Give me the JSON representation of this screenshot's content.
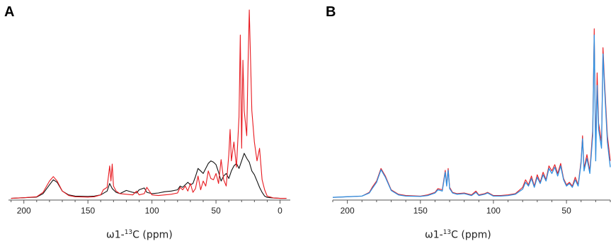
{
  "chart_data": [
    {
      "panel": "A",
      "type": "line",
      "xlabel_prefix": "ω1-",
      "xlabel_sup": "13",
      "xlabel_suffix": "C (ppm)",
      "xlim": [
        212,
        -8
      ],
      "xticks": [
        "200",
        "150",
        "100",
        "50",
        "0"
      ],
      "xtick_values": [
        200,
        150,
        100,
        50,
        0
      ],
      "series": [
        {
          "color": "#111111",
          "x": [
            210,
            200,
            190,
            185,
            180,
            177,
            174,
            170,
            165,
            160,
            150,
            145,
            140,
            135,
            133,
            131,
            128,
            125,
            120,
            115,
            112,
            110,
            106,
            104,
            100,
            95,
            90,
            85,
            80,
            78,
            76,
            74,
            72,
            70,
            68,
            66,
            64,
            62,
            60,
            58,
            56,
            54,
            52,
            50,
            48,
            46,
            44,
            42,
            40,
            38,
            36,
            34,
            32,
            30,
            28,
            26,
            24,
            22,
            20,
            18,
            16,
            14,
            12,
            10,
            5,
            0,
            -5
          ],
          "y": [
            0.5,
            1.5,
            2.5,
            8,
            22,
            30,
            26,
            12,
            6,
            4,
            3.5,
            4,
            6,
            12,
            24,
            16,
            10,
            8,
            13,
            10,
            9,
            14,
            17,
            10,
            8,
            9,
            11,
            12,
            14,
            20,
            18,
            22,
            26,
            22,
            24,
            35,
            48,
            44,
            40,
            48,
            56,
            60,
            58,
            54,
            42,
            28,
            36,
            40,
            32,
            44,
            52,
            56,
            48,
            60,
            72,
            64,
            58,
            44,
            38,
            28,
            18,
            10,
            4,
            2,
            1,
            0.5,
            0.5
          ]
        },
        {
          "color": "#e8191f",
          "x": [
            210,
            200,
            190,
            185,
            180,
            177,
            174,
            170,
            165,
            160,
            150,
            145,
            140,
            138,
            135,
            133,
            132,
            131,
            130,
            128,
            125,
            120,
            115,
            112,
            110,
            106,
            104,
            100,
            95,
            90,
            85,
            80,
            78,
            76,
            74,
            72,
            70,
            68,
            66,
            64,
            62,
            60,
            58,
            56,
            54,
            52,
            50,
            48,
            46,
            44,
            42,
            40,
            39,
            38,
            36,
            34,
            32,
            31,
            30,
            29,
            28,
            26,
            25,
            24,
            22,
            20,
            18,
            16,
            14,
            12,
            10,
            5,
            0,
            -5
          ],
          "y": [
            0.5,
            1.5,
            3,
            10,
            28,
            35,
            28,
            12,
            5,
            3,
            2.5,
            3,
            6,
            14,
            18,
            52,
            28,
            55,
            20,
            12,
            8,
            7,
            6,
            12,
            6,
            8,
            18,
            6,
            5,
            6,
            7,
            9,
            18,
            14,
            20,
            12,
            24,
            10,
            16,
            36,
            14,
            28,
            20,
            44,
            32,
            30,
            40,
            24,
            62,
            30,
            20,
            70,
            110,
            60,
            90,
            50,
            130,
            260,
            80,
            220,
            140,
            100,
            210,
            300,
            140,
            90,
            60,
            80,
            30,
            14,
            4,
            1,
            0.5,
            0.5
          ]
        }
      ]
    },
    {
      "panel": "B",
      "type": "line",
      "xlabel_prefix": "ω1-",
      "xlabel_sup": "13",
      "xlabel_suffix": "C (ppm)",
      "xlim": [
        210,
        20
      ],
      "xticks": [
        "200",
        "150",
        "100",
        "50"
      ],
      "xtick_values": [
        200,
        150,
        100,
        50
      ],
      "series": [
        {
          "color": "#e8191f",
          "x": [
            210,
            200,
            190,
            185,
            183,
            180,
            177,
            174,
            170,
            165,
            160,
            150,
            145,
            140,
            138,
            135,
            133,
            132,
            131,
            130,
            128,
            125,
            120,
            115,
            112,
            110,
            106,
            104,
            100,
            95,
            90,
            85,
            80,
            78,
            76,
            74,
            72,
            70,
            68,
            66,
            64,
            62,
            60,
            58,
            56,
            54,
            52,
            50,
            48,
            46,
            44,
            42,
            40,
            39,
            38,
            36,
            34,
            32,
            31,
            30,
            29,
            28,
            26,
            25,
            24,
            22,
            20
          ],
          "y": [
            2,
            3,
            4,
            10,
            18,
            28,
            48,
            36,
            14,
            7,
            5,
            4,
            6,
            10,
            16,
            14,
            45,
            22,
            48,
            18,
            10,
            8,
            9,
            6,
            12,
            6,
            8,
            10,
            5,
            5,
            6,
            8,
            18,
            30,
            22,
            36,
            20,
            38,
            26,
            42,
            30,
            52,
            44,
            54,
            40,
            56,
            32,
            22,
            26,
            20,
            34,
            22,
            60,
            100,
            48,
            70,
            44,
            110,
            270,
            70,
            200,
            120,
            90,
            240,
            190,
            100,
            60
          ],
          "width": 1.1
        },
        {
          "color": "#2f8fe0",
          "x": [
            210,
            200,
            190,
            185,
            183,
            180,
            177,
            174,
            170,
            165,
            160,
            150,
            145,
            140,
            138,
            135,
            133,
            132,
            131,
            130,
            128,
            125,
            120,
            115,
            112,
            110,
            106,
            104,
            100,
            95,
            90,
            85,
            80,
            78,
            76,
            74,
            72,
            70,
            68,
            66,
            64,
            62,
            60,
            58,
            56,
            54,
            52,
            50,
            48,
            46,
            44,
            42,
            40,
            39,
            38,
            36,
            34,
            32,
            31,
            30,
            29,
            28,
            26,
            25,
            24,
            22,
            20
          ],
          "y": [
            2,
            3,
            4,
            9,
            16,
            26,
            46,
            34,
            13,
            6,
            4,
            3.5,
            5,
            9,
            14,
            12,
            42,
            20,
            45,
            16,
            9,
            7,
            8,
            5,
            10,
            5,
            7,
            9,
            4,
            4,
            5,
            7,
            15,
            26,
            20,
            32,
            18,
            34,
            24,
            38,
            28,
            48,
            40,
            50,
            36,
            52,
            30,
            20,
            24,
            18,
            30,
            20,
            56,
            95,
            44,
            64,
            40,
            100,
            260,
            60,
            180,
            110,
            80,
            230,
            180,
            90,
            50
          ],
          "width": 1.3
        }
      ]
    }
  ]
}
